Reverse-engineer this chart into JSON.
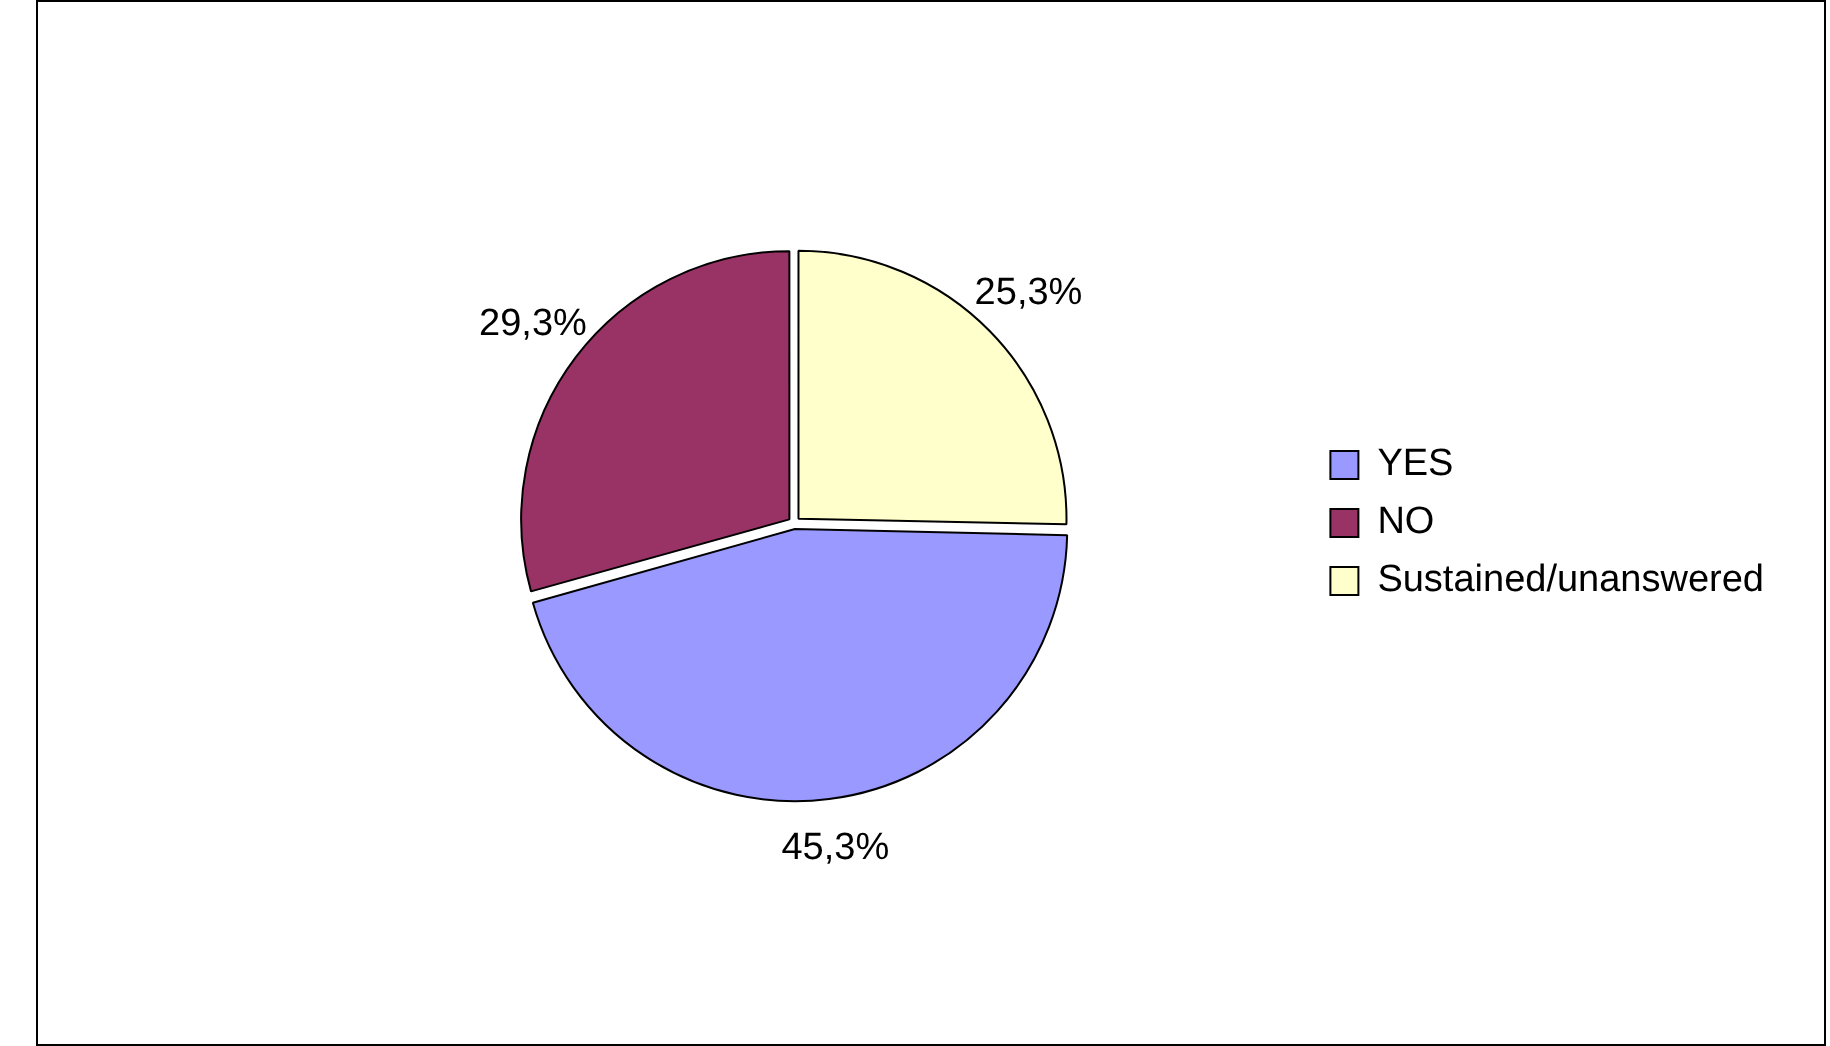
{
  "chart_data": {
    "type": "pie",
    "categories": [
      "YES",
      "NO",
      "Sustained/unanswered"
    ],
    "values": [
      45.3,
      29.3,
      25.3
    ],
    "colors": [
      "#9999ff",
      "#993366",
      "#ffffcc"
    ],
    "value_labels": [
      "45,3%",
      "29,3%",
      "25,3%"
    ],
    "legend": "right"
  }
}
